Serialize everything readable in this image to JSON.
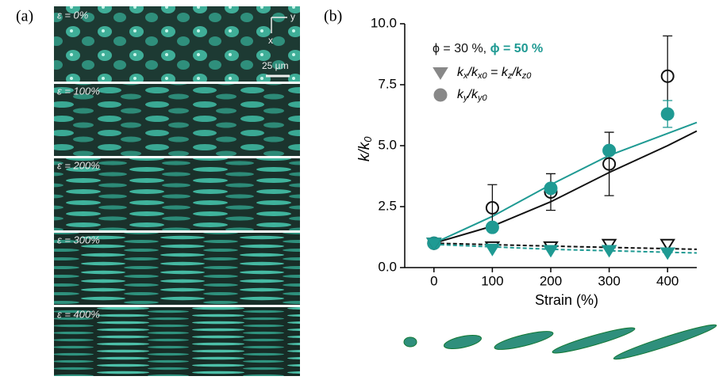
{
  "panel_a": {
    "label": "(a)",
    "strains": [
      "ε = 0%",
      "ε = 100%",
      "ε = 200%",
      "ε = 300%",
      "ε = 400%"
    ],
    "scale_bar": "25 µm",
    "axes": [
      "y",
      "x"
    ]
  },
  "chart_data": {
    "type": "scatter",
    "panel_label": "(b)",
    "xlabel": "Strain (%)",
    "ylabel": [
      "k/k",
      "0"
    ],
    "xlim": [
      -50,
      450
    ],
    "ylim": [
      0,
      10
    ],
    "xticks": [
      0,
      100,
      200,
      300,
      400
    ],
    "yticks": [
      {
        "value": 0,
        "label": "0.0"
      },
      {
        "value": 2.5,
        "label": "2.5"
      },
      {
        "value": 5,
        "label": "5.0"
      },
      {
        "value": 7.5,
        "label": "7.5"
      },
      {
        "value": 10,
        "label": "10.0"
      }
    ],
    "x": [
      0,
      100,
      200,
      300,
      400
    ],
    "series": [
      {
        "color": "#111111",
        "marker": "circle",
        "filled": false,
        "values": [
          1.0,
          2.45,
          3.1,
          4.25,
          7.85
        ],
        "errors": [
          null,
          0.95,
          0.75,
          1.3,
          1.65
        ]
      },
      {
        "color": "#1f9a93",
        "marker": "circle",
        "filled": true,
        "values": [
          1.0,
          1.65,
          3.25,
          4.8,
          6.3
        ],
        "errors": [
          null,
          null,
          null,
          null,
          0.55
        ]
      },
      {
        "color": "#111111",
        "marker": "triangle",
        "filled": false,
        "values": [
          1.0,
          0.85,
          0.85,
          0.95,
          0.95
        ]
      },
      {
        "color": "#1f9a93",
        "marker": "triangle",
        "filled": true,
        "values": [
          1.0,
          0.75,
          0.7,
          0.7,
          0.6
        ]
      }
    ],
    "fits": [
      {
        "color": "#111111",
        "dashed": false,
        "x": [
          0,
          100,
          200,
          300,
          400,
          450
        ],
        "values": [
          1.0,
          1.7,
          2.7,
          3.9,
          5.0,
          5.6
        ]
      },
      {
        "color": "#1f9a93",
        "dashed": false,
        "x": [
          0,
          100,
          200,
          300,
          400,
          450
        ],
        "values": [
          1.0,
          2.1,
          3.4,
          4.6,
          5.5,
          5.95
        ]
      },
      {
        "color": "#111111",
        "dashed": true,
        "x": [
          0,
          200,
          450
        ],
        "values": [
          1.0,
          0.88,
          0.75
        ]
      },
      {
        "color": "#1f9a93",
        "dashed": true,
        "x": [
          0,
          200,
          450
        ],
        "values": [
          0.95,
          0.75,
          0.6
        ]
      }
    ],
    "legend": {
      "header": [
        "ϕ = 30 %, ",
        "ϕ = 50 %"
      ],
      "header_colors": [
        "#111111",
        "#1f9a93"
      ],
      "marker_color": "#888888",
      "entries": [
        {
          "marker": "triangle",
          "parts": [
            "k",
            "x",
            "/k",
            "x0",
            " = k",
            "z",
            "/k",
            "z0"
          ]
        },
        {
          "marker": "circle",
          "parts": [
            "k",
            "y",
            "/k",
            "y0"
          ]
        }
      ]
    }
  }
}
